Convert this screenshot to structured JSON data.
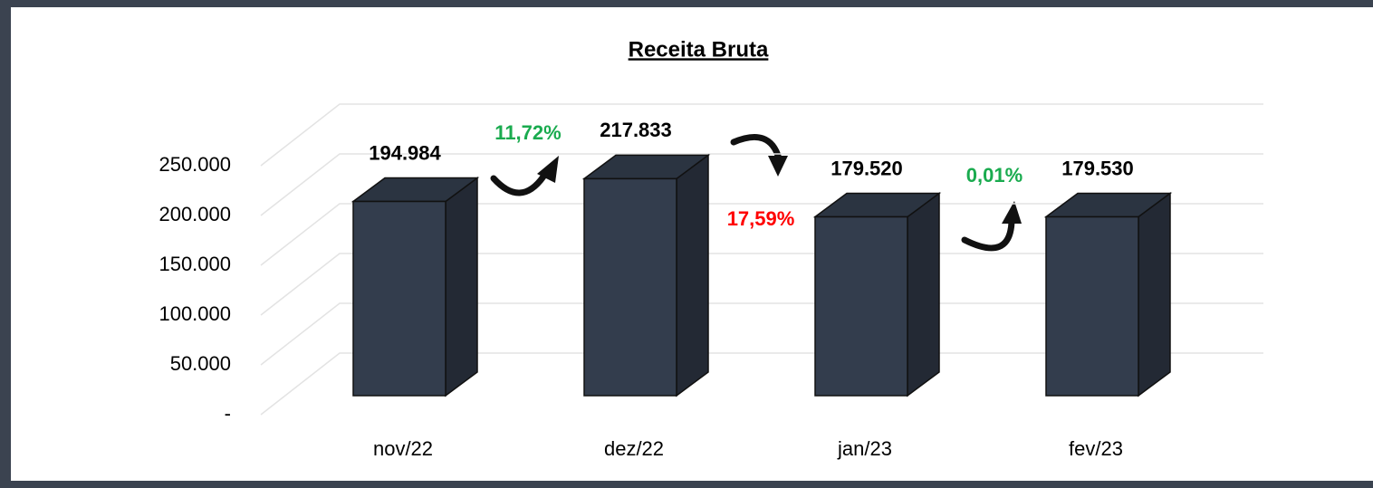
{
  "chart_data": {
    "type": "bar3d",
    "title": "Receita Bruta",
    "categories": [
      "nov/22",
      "dez/22",
      "jan/23",
      "fev/23"
    ],
    "values": [
      194984,
      217833,
      179520,
      179530
    ],
    "value_labels": [
      "194.984",
      "217.833",
      "179.520",
      "179.530"
    ],
    "color": "#333d4d",
    "ylim": [
      0,
      250000
    ],
    "yticks": [
      {
        "value": 0,
        "label": "-"
      },
      {
        "value": 50000,
        "label": "50.000"
      },
      {
        "value": 100000,
        "label": "100.000"
      },
      {
        "value": 150000,
        "label": "150.000"
      },
      {
        "value": 200000,
        "label": "200.000"
      },
      {
        "value": 250000,
        "label": "250.000"
      }
    ],
    "grid": true,
    "annotations": [
      {
        "text": "11,72%",
        "color": "#1aab4f"
      },
      {
        "text": "17,59%",
        "color": "#ff0000"
      },
      {
        "text": "0,01%",
        "color": "#1aab4f"
      }
    ]
  }
}
